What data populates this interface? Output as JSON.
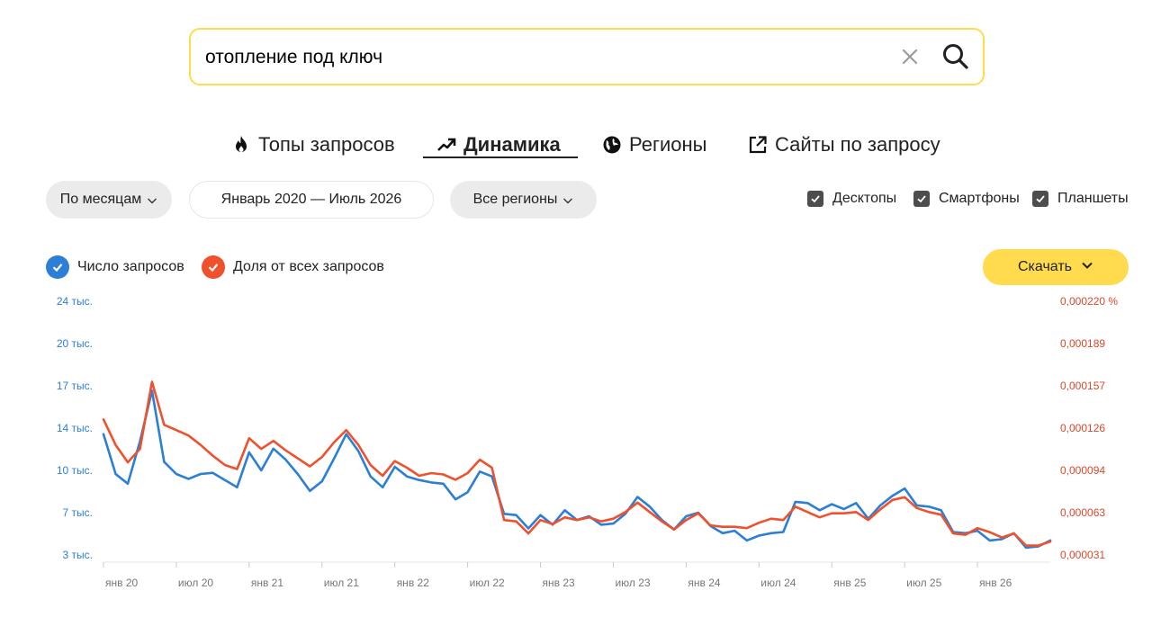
{
  "search": {
    "query": "отопление под ключ"
  },
  "tabs": [
    {
      "label": "Топы запросов",
      "icon": "fire-icon"
    },
    {
      "label": "Динамика",
      "icon": "trend-icon"
    },
    {
      "label": "Регионы",
      "icon": "globe-icon"
    },
    {
      "label": "Сайты по запросу",
      "icon": "external-link-icon"
    }
  ],
  "filters": {
    "period": "По месяцам",
    "range": "Январь 2020 — Июль 2026",
    "regions": "Все регионы"
  },
  "devices": [
    {
      "label": "Десктопы",
      "checked": true
    },
    {
      "label": "Смартфоны",
      "checked": true
    },
    {
      "label": "Планшеты",
      "checked": true
    }
  ],
  "legend": [
    {
      "label": "Число запросов",
      "color": "#2b7fd6"
    },
    {
      "label": "Доля от всех запросов",
      "color": "#f0512d"
    }
  ],
  "download_label": "Скачать",
  "colors": {
    "accent_yellow": "#ffdb4d",
    "series_blue": "#2b7fd6",
    "series_red": "#f0512d"
  },
  "chart_data": {
    "type": "line",
    "x_start": "янв 20",
    "x_ticks": [
      "янв 20",
      "июл 20",
      "янв 21",
      "июл 21",
      "янв 22",
      "июл 22",
      "янв 23",
      "июл 23",
      "янв 24",
      "июл 24",
      "янв 25",
      "июл 25",
      "янв 26"
    ],
    "y_left_ticks": [
      "24 тыс.",
      "20 тыс.",
      "17 тыс.",
      "14 тыс.",
      "10 тыс.",
      "7 тыс.",
      "3 тыс."
    ],
    "y_right_ticks": [
      "0,000220 %",
      "0,000189",
      "0,000157",
      "0,000126",
      "0,000094",
      "0,000063",
      "0,000031"
    ],
    "grid": false,
    "series": [
      {
        "name": "Число запросов",
        "axis": "left",
        "color": "#2b7fd6",
        "values": [
          13000,
          9700,
          8900,
          12400,
          16600,
          10700,
          9700,
          9300,
          9700,
          9800,
          9200,
          8600,
          11500,
          10000,
          11800,
          10900,
          9700,
          8300,
          9100,
          11000,
          13000,
          11600,
          9500,
          8600,
          10300,
          9500,
          9200,
          9000,
          8900,
          7600,
          8200,
          9900,
          9500,
          6400,
          6300,
          5200,
          6300,
          5500,
          6700,
          5900,
          6200,
          5500,
          5600,
          6400,
          7800,
          7000,
          5900,
          5100,
          6200,
          6500,
          5400,
          4800,
          5000,
          4200,
          4600,
          4800,
          4900,
          7400,
          7300,
          6700,
          7200,
          6800,
          7300,
          6000,
          7100,
          7900,
          8500,
          7100,
          7000,
          6700,
          4900,
          4800,
          5000,
          4200,
          4300,
          4800,
          3600,
          3700,
          4200
        ],
        "y_range": [
          3000,
          24000
        ]
      },
      {
        "name": "Доля от всех запросов",
        "axis": "right",
        "color": "#f0512d",
        "values": [
          0.000132,
          0.000113,
          0.0001,
          0.00011,
          0.00016,
          0.000128,
          0.000124,
          0.00012,
          0.000113,
          0.000105,
          9.8e-05,
          9.5e-05,
          0.000118,
          0.00011,
          0.000116,
          0.000109,
          0.000103,
          9.7e-05,
          0.000104,
          0.000115,
          0.000124,
          0.000113,
          9.8e-05,
          9e-05,
          0.000101,
          9.6e-05,
          9e-05,
          9.2e-05,
          9.1e-05,
          8.7e-05,
          9.2e-05,
          0.000102,
          9.6e-05,
          5.7e-05,
          5.6e-05,
          4.7e-05,
          5.7e-05,
          5.4e-05,
          5.9e-05,
          5.7e-05,
          5.9e-05,
          5.6e-05,
          5.8e-05,
          6.3e-05,
          7e-05,
          6.3e-05,
          5.6e-05,
          5e-05,
          5.7e-05,
          6.2e-05,
          5.3e-05,
          5.2e-05,
          5.2e-05,
          5.1e-05,
          5.5e-05,
          5.8e-05,
          5.7e-05,
          6.7e-05,
          6.3e-05,
          5.9e-05,
          6.2e-05,
          6.2e-05,
          6.3e-05,
          5.7e-05,
          6.5e-05,
          7.2e-05,
          7.4e-05,
          6.6e-05,
          6.3e-05,
          6.1e-05,
          4.7e-05,
          4.6e-05,
          5.1e-05,
          4.8e-05,
          4.4e-05,
          4.7e-05,
          3.8e-05,
          3.8e-05,
          4.1e-05
        ],
        "y_range": [
          3.1e-05,
          0.00022
        ]
      }
    ]
  }
}
